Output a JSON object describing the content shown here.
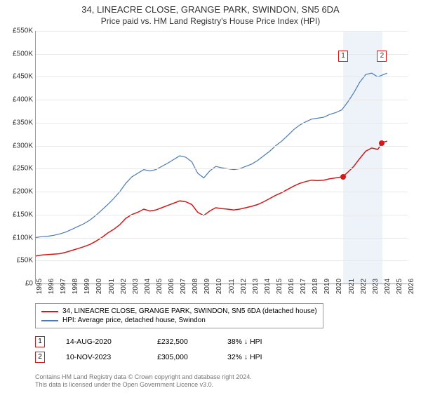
{
  "title": "34, LINEACRE CLOSE, GRANGE PARK, SWINDON, SN5 6DA",
  "subtitle": "Price paid vs. HM Land Registry's House Price Index (HPI)",
  "chart": {
    "type": "line",
    "xlim": [
      1995,
      2026
    ],
    "ylim": [
      0,
      550000
    ],
    "ytick_step": 50000,
    "y_labels": [
      "£0",
      "£50K",
      "£100K",
      "£150K",
      "£200K",
      "£250K",
      "£300K",
      "£350K",
      "£400K",
      "£450K",
      "£500K",
      "£550K"
    ],
    "x_labels": [
      "1995",
      "1996",
      "1997",
      "1998",
      "1999",
      "2000",
      "2001",
      "2002",
      "2003",
      "2004",
      "2005",
      "2006",
      "2007",
      "2008",
      "2009",
      "2010",
      "2011",
      "2012",
      "2013",
      "2014",
      "2015",
      "2016",
      "2017",
      "2018",
      "2019",
      "2020",
      "2021",
      "2022",
      "2023",
      "2024",
      "2025",
      "2026"
    ],
    "grid_color": "#e8e8e8",
    "background_color": "#ffffff",
    "highlight_band": {
      "x_start": 2020.6,
      "x_end": 2023.9,
      "color": "#e6eef7"
    },
    "series": [
      {
        "name": "property",
        "color": "#d21919",
        "width": 1.5,
        "points": [
          [
            1995,
            60000
          ],
          [
            1995.5,
            62000
          ],
          [
            1996,
            63000
          ],
          [
            1996.5,
            64000
          ],
          [
            1997,
            65000
          ],
          [
            1997.5,
            68000
          ],
          [
            1998,
            72000
          ],
          [
            1998.5,
            76000
          ],
          [
            1999,
            80000
          ],
          [
            1999.5,
            85000
          ],
          [
            2000,
            92000
          ],
          [
            2000.5,
            100000
          ],
          [
            2001,
            110000
          ],
          [
            2001.5,
            118000
          ],
          [
            2002,
            128000
          ],
          [
            2002.5,
            142000
          ],
          [
            2003,
            150000
          ],
          [
            2003.5,
            155000
          ],
          [
            2004,
            162000
          ],
          [
            2004.5,
            158000
          ],
          [
            2005,
            160000
          ],
          [
            2005.5,
            165000
          ],
          [
            2006,
            170000
          ],
          [
            2006.5,
            175000
          ],
          [
            2007,
            180000
          ],
          [
            2007.5,
            178000
          ],
          [
            2008,
            172000
          ],
          [
            2008.5,
            155000
          ],
          [
            2009,
            148000
          ],
          [
            2009.5,
            158000
          ],
          [
            2010,
            165000
          ],
          [
            2010.5,
            163000
          ],
          [
            2011,
            162000
          ],
          [
            2011.5,
            160000
          ],
          [
            2012,
            162000
          ],
          [
            2012.5,
            165000
          ],
          [
            2013,
            168000
          ],
          [
            2013.5,
            172000
          ],
          [
            2014,
            178000
          ],
          [
            2014.5,
            185000
          ],
          [
            2015,
            192000
          ],
          [
            2015.5,
            198000
          ],
          [
            2016,
            205000
          ],
          [
            2016.5,
            212000
          ],
          [
            2017,
            218000
          ],
          [
            2017.5,
            222000
          ],
          [
            2018,
            225000
          ],
          [
            2018.5,
            224000
          ],
          [
            2019,
            225000
          ],
          [
            2019.5,
            228000
          ],
          [
            2020,
            230000
          ],
          [
            2020.6,
            232500
          ],
          [
            2021,
            242000
          ],
          [
            2021.5,
            255000
          ],
          [
            2022,
            272000
          ],
          [
            2022.5,
            288000
          ],
          [
            2023,
            295000
          ],
          [
            2023.5,
            292000
          ],
          [
            2023.86,
            305000
          ],
          [
            2024,
            308000
          ],
          [
            2024.3,
            310000
          ]
        ]
      },
      {
        "name": "hpi",
        "color": "#4a7bb5",
        "width": 1.2,
        "points": [
          [
            1995,
            100000
          ],
          [
            1995.5,
            102000
          ],
          [
            1996,
            103000
          ],
          [
            1996.5,
            105000
          ],
          [
            1997,
            108000
          ],
          [
            1997.5,
            112000
          ],
          [
            1998,
            118000
          ],
          [
            1998.5,
            124000
          ],
          [
            1999,
            130000
          ],
          [
            1999.5,
            138000
          ],
          [
            2000,
            148000
          ],
          [
            2000.5,
            160000
          ],
          [
            2001,
            172000
          ],
          [
            2001.5,
            185000
          ],
          [
            2002,
            200000
          ],
          [
            2002.5,
            218000
          ],
          [
            2003,
            232000
          ],
          [
            2003.5,
            240000
          ],
          [
            2004,
            248000
          ],
          [
            2004.5,
            245000
          ],
          [
            2005,
            248000
          ],
          [
            2005.5,
            255000
          ],
          [
            2006,
            262000
          ],
          [
            2006.5,
            270000
          ],
          [
            2007,
            278000
          ],
          [
            2007.5,
            275000
          ],
          [
            2008,
            265000
          ],
          [
            2008.5,
            240000
          ],
          [
            2009,
            230000
          ],
          [
            2009.5,
            245000
          ],
          [
            2010,
            255000
          ],
          [
            2010.5,
            252000
          ],
          [
            2011,
            250000
          ],
          [
            2011.5,
            248000
          ],
          [
            2012,
            250000
          ],
          [
            2012.5,
            255000
          ],
          [
            2013,
            260000
          ],
          [
            2013.5,
            268000
          ],
          [
            2014,
            278000
          ],
          [
            2014.5,
            288000
          ],
          [
            2015,
            300000
          ],
          [
            2015.5,
            310000
          ],
          [
            2016,
            322000
          ],
          [
            2016.5,
            335000
          ],
          [
            2017,
            345000
          ],
          [
            2017.5,
            352000
          ],
          [
            2018,
            358000
          ],
          [
            2018.5,
            360000
          ],
          [
            2019,
            362000
          ],
          [
            2019.5,
            368000
          ],
          [
            2020,
            372000
          ],
          [
            2020.5,
            378000
          ],
          [
            2021,
            395000
          ],
          [
            2021.5,
            415000
          ],
          [
            2022,
            438000
          ],
          [
            2022.5,
            455000
          ],
          [
            2023,
            458000
          ],
          [
            2023.5,
            450000
          ],
          [
            2024,
            455000
          ],
          [
            2024.3,
            458000
          ]
        ]
      }
    ],
    "sale_markers": [
      {
        "num": "1",
        "x": 2020.62,
        "y": 232500,
        "box_y": 62000,
        "color": "#d21919"
      },
      {
        "num": "2",
        "x": 2023.86,
        "y": 305000,
        "box_y": 62000,
        "color": "#d21919"
      }
    ]
  },
  "legend": {
    "items": [
      {
        "color": "#d21919",
        "label": "34, LINEACRE CLOSE, GRANGE PARK, SWINDON, SN5 6DA (detached house)"
      },
      {
        "color": "#4a7bb5",
        "label": "HPI: Average price, detached house, Swindon"
      }
    ]
  },
  "sales": [
    {
      "num": "1",
      "color": "#d21919",
      "date": "14-AUG-2020",
      "price": "£232,500",
      "delta": "38% ↓ HPI"
    },
    {
      "num": "2",
      "color": "#d21919",
      "date": "10-NOV-2023",
      "price": "£305,000",
      "delta": "32% ↓ HPI"
    }
  ],
  "footer_line1": "Contains HM Land Registry data © Crown copyright and database right 2024.",
  "footer_line2": "This data is licensed under the Open Government Licence v3.0."
}
